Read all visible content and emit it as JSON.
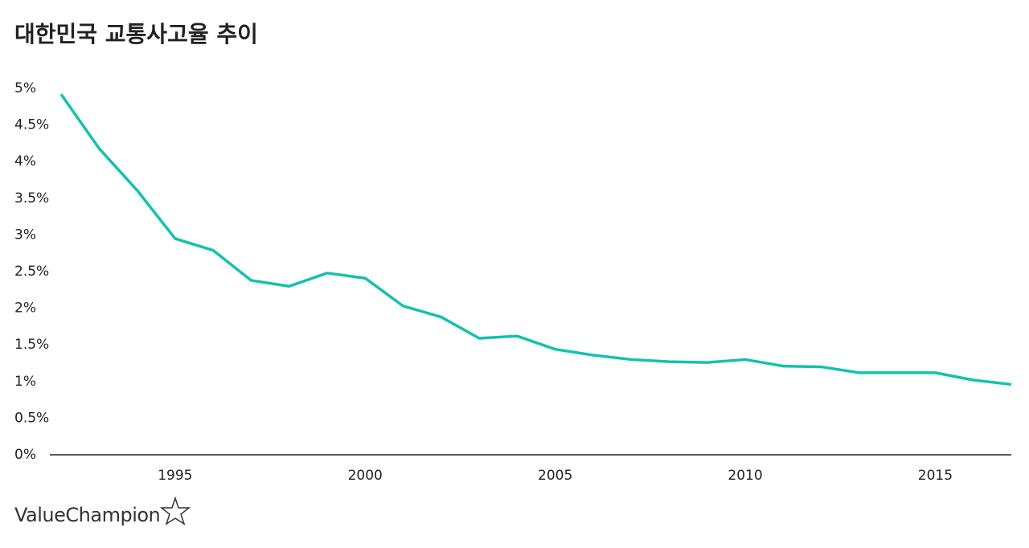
{
  "chart_data": {
    "type": "line",
    "title": "대한민국 교통사고율 추이",
    "x": [
      1992,
      1993,
      1994,
      1995,
      1996,
      1997,
      1998,
      1999,
      2000,
      2001,
      2002,
      2003,
      2004,
      2005,
      2006,
      2007,
      2008,
      2009,
      2010,
      2011,
      2012,
      2013,
      2014,
      2015,
      2016,
      2017
    ],
    "values": [
      4.92,
      4.18,
      3.61,
      2.95,
      2.79,
      2.38,
      2.3,
      2.48,
      2.41,
      2.03,
      1.88,
      1.59,
      1.62,
      1.44,
      1.36,
      1.3,
      1.27,
      1.26,
      1.3,
      1.21,
      1.2,
      1.12,
      1.12,
      1.12,
      1.02,
      0.96
    ],
    "color": "#14c2ad",
    "xlim": [
      1992,
      2017
    ],
    "xticks": [
      1995,
      2000,
      2005,
      2010,
      2015
    ],
    "ylim": [
      0,
      5
    ],
    "yticks": [
      {
        "value": 0,
        "label": "0%"
      },
      {
        "value": 0.5,
        "label": "0.5%"
      },
      {
        "value": 1,
        "label": "1%"
      },
      {
        "value": 1.5,
        "label": "1.5%"
      },
      {
        "value": 2,
        "label": "2%"
      },
      {
        "value": 2.5,
        "label": "2.5%"
      },
      {
        "value": 3,
        "label": "3%"
      },
      {
        "value": 3.5,
        "label": "3.5%"
      },
      {
        "value": 4,
        "label": "4%"
      },
      {
        "value": 4.5,
        "label": "4.5%"
      },
      {
        "value": 5,
        "label": "5%"
      }
    ],
    "grid": false,
    "branding": "ValueChampion"
  }
}
